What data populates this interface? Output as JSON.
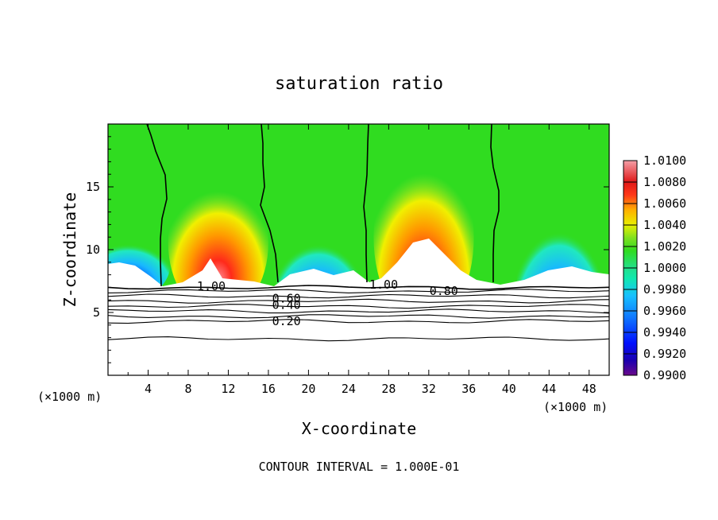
{
  "chart_data": {
    "type": "heatmap",
    "title": "saturation ratio",
    "xlabel": "X-coordinate",
    "ylabel": "Z-coordinate",
    "x_unit": "(×1000 m)",
    "y_unit": "(×1000 m)",
    "xlim": [
      0,
      50
    ],
    "ylim": [
      0,
      20
    ],
    "x_ticks": [
      "4",
      "8",
      "12",
      "16",
      "20",
      "24",
      "28",
      "32",
      "36",
      "40",
      "44",
      "48"
    ],
    "y_ticks": [
      "5",
      "10",
      "15"
    ],
    "colorbar": {
      "min": 0.99,
      "max": 1.01,
      "labels": [
        "1.0100",
        "1.0080",
        "1.0060",
        "1.0040",
        "1.0020",
        "1.0000",
        "0.9980",
        "0.9960",
        "0.9940",
        "0.9920",
        "0.9900"
      ]
    },
    "contour_labels": [
      "1.00",
      "1.00",
      "0.80",
      "0.60",
      "0.40",
      "0.20"
    ],
    "footnote": "CONTOUR INTERVAL = 1.000E-01",
    "supersaturation_cores": [
      {
        "x": 11,
        "z_min": 8.5,
        "z_max": 15,
        "peak": 1.01
      },
      {
        "x": 31.5,
        "z_min": 8.5,
        "z_max": 16.5,
        "peak": 1.01
      }
    ],
    "subsaturation_lobes": [
      {
        "x": 2,
        "z_min": 8.5,
        "z_max": 12.5
      },
      {
        "x": 21,
        "z_min": 7.5,
        "z_max": 13.5
      },
      {
        "x": 45,
        "z_min": 7.5,
        "z_max": 15.5
      }
    ],
    "lower_contours_z": [
      7.0,
      6.7,
      6.3,
      5.9,
      5.5,
      5.1,
      4.7,
      4.3,
      2.9
    ]
  }
}
